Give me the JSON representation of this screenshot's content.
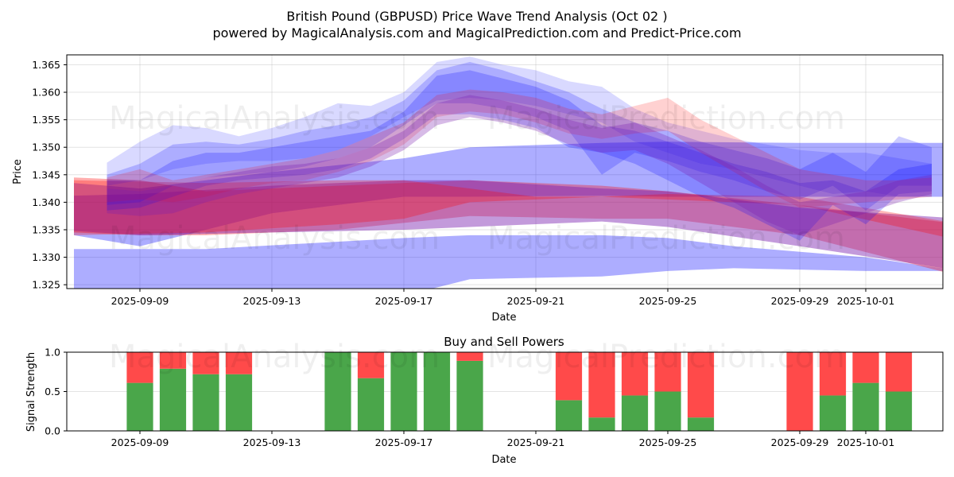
{
  "header": {
    "title": "British Pound (GBPUSD) Price Wave Trend Analysis (Oct 02 )",
    "subtitle": "powered by MagicalAnalysis.com and MagicalPrediction.com and Predict-Price.com"
  },
  "watermarks": [
    "MagicalAnalysis.com",
    "MagicalPrediction.com"
  ],
  "colors": {
    "blue_band": "#0000ff",
    "red_band": "#ff0000",
    "buy": "#4aa64a",
    "sell": "#ff4a4a"
  },
  "chart_data": [
    {
      "type": "area",
      "title": "",
      "xlabel": "Date",
      "ylabel": "Price",
      "ylim": [
        1.3243,
        1.3668
      ],
      "xlim": [
        "2025-09-06.8",
        "2025-10-03.3"
      ],
      "grid": true,
      "yticks": [
        "1.325",
        "1.330",
        "1.335",
        "1.340",
        "1.345",
        "1.350",
        "1.355",
        "1.360",
        "1.365"
      ],
      "ytick_values": [
        1.325,
        1.33,
        1.335,
        1.34,
        1.345,
        1.35,
        1.355,
        1.36,
        1.365
      ],
      "xticks": [
        "2025-09-09",
        "2025-09-13",
        "2025-09-17",
        "2025-09-21",
        "2025-09-25",
        "2025-09-29",
        "2025-10-01"
      ],
      "xtick_days": [
        2,
        6,
        10,
        14,
        18,
        22,
        24
      ],
      "x_origin": "2025-09-07",
      "bands": [
        {
          "name": "wide-blue-lower",
          "color": "blue",
          "opacity": 0.32,
          "x": [
            0,
            4,
            10,
            12,
            16,
            18,
            20,
            24,
            26.9
          ],
          "upper": [
            1.3315,
            1.3315,
            1.3335,
            1.334,
            1.334,
            1.3335,
            1.332,
            1.33,
            1.3275
          ],
          "lower": [
            1.32,
            1.322,
            1.323,
            1.326,
            1.3265,
            1.3275,
            1.328,
            1.3275,
            1.3275
          ]
        },
        {
          "name": "wide-blue-upper",
          "color": "blue",
          "opacity": 0.32,
          "x": [
            0,
            2,
            6,
            10,
            12,
            16,
            18,
            22,
            26.9
          ],
          "upper": [
            1.3435,
            1.3425,
            1.3455,
            1.348,
            1.35,
            1.3508,
            1.351,
            1.3508,
            1.3508
          ],
          "lower": [
            1.334,
            1.332,
            1.338,
            1.341,
            1.341,
            1.3412,
            1.341,
            1.341,
            1.341
          ]
        },
        {
          "name": "wide-red-lower",
          "color": "red",
          "opacity": 0.32,
          "x": [
            0,
            2,
            4,
            8,
            12,
            16,
            18,
            22,
            26.9
          ],
          "upper": [
            1.3445,
            1.344,
            1.342,
            1.343,
            1.344,
            1.343,
            1.342,
            1.3395,
            1.336
          ],
          "lower": [
            1.3345,
            1.334,
            1.334,
            1.335,
            1.3375,
            1.337,
            1.337,
            1.334,
            1.3265
          ]
        },
        {
          "name": "wide-purple",
          "color": "purple",
          "opacity": 0.45,
          "x": [
            0,
            2,
            6,
            10,
            12,
            16,
            18,
            22,
            26.9
          ],
          "upper": [
            1.3412,
            1.3415,
            1.343,
            1.344,
            1.344,
            1.3425,
            1.342,
            1.339,
            1.337
          ],
          "lower": [
            1.3348,
            1.334,
            1.3345,
            1.335,
            1.3355,
            1.3365,
            1.3355,
            1.332,
            1.3275
          ]
        },
        {
          "name": "mid-red",
          "color": "red",
          "opacity": 0.28,
          "x": [
            0,
            4,
            8,
            10,
            12,
            14,
            16,
            18,
            22,
            26.9
          ],
          "upper": [
            1.344,
            1.3435,
            1.344,
            1.344,
            1.3425,
            1.341,
            1.341,
            1.3415,
            1.341,
            1.336
          ],
          "lower": [
            1.334,
            1.3345,
            1.336,
            1.337,
            1.34,
            1.3405,
            1.341,
            1.3405,
            1.3395,
            1.333
          ]
        },
        {
          "name": "wave-blue-1",
          "color": "blue",
          "opacity": 0.15,
          "x": [
            1,
            2,
            3,
            4,
            5,
            6,
            7,
            8,
            9,
            10,
            11,
            12,
            13,
            14,
            15,
            16,
            17,
            18,
            19,
            20,
            21,
            22,
            23,
            24,
            25,
            26
          ],
          "upper": [
            1.3472,
            1.351,
            1.354,
            1.3535,
            1.352,
            1.3535,
            1.3555,
            1.358,
            1.3575,
            1.36,
            1.3655,
            1.3665,
            1.365,
            1.364,
            1.362,
            1.361,
            1.357,
            1.3545,
            1.353,
            1.3515,
            1.3505,
            1.3495,
            1.349,
            1.349,
            1.348,
            1.347
          ],
          "lower": [
            1.343,
            1.344,
            1.346,
            1.347,
            1.3475,
            1.3475,
            1.348,
            1.3495,
            1.352,
            1.3555,
            1.3585,
            1.359,
            1.3585,
            1.3575,
            1.356,
            1.3545,
            1.351,
            1.349,
            1.347,
            1.346,
            1.3445,
            1.343,
            1.3415,
            1.342,
            1.341,
            1.341
          ]
        },
        {
          "name": "wave-blue-2",
          "color": "blue",
          "opacity": 0.2,
          "x": [
            1,
            2,
            3,
            4,
            5,
            6,
            7,
            8,
            9,
            10,
            11,
            12,
            13,
            14,
            15,
            16,
            17,
            18,
            19,
            20,
            21,
            22,
            23,
            24,
            25,
            26
          ],
          "upper": [
            1.345,
            1.347,
            1.3505,
            1.351,
            1.3505,
            1.3515,
            1.353,
            1.354,
            1.3555,
            1.3585,
            1.364,
            1.3655,
            1.364,
            1.362,
            1.36,
            1.357,
            1.3545,
            1.353,
            1.351,
            1.3495,
            1.348,
            1.346,
            1.349,
            1.3455,
            1.352,
            1.35
          ],
          "lower": [
            1.3395,
            1.34,
            1.343,
            1.3445,
            1.345,
            1.3455,
            1.3465,
            1.348,
            1.35,
            1.354,
            1.358,
            1.358,
            1.357,
            1.3555,
            1.353,
            1.345,
            1.349,
            1.3475,
            1.3455,
            1.344,
            1.342,
            1.3405,
            1.343,
            1.3385,
            1.343,
            1.343
          ]
        },
        {
          "name": "wave-blue-3",
          "color": "blue",
          "opacity": 0.22,
          "x": [
            1,
            2,
            3,
            4,
            5,
            6,
            7,
            8,
            9,
            10,
            11,
            12,
            13,
            14,
            15,
            16,
            17,
            18,
            19,
            20,
            21,
            22,
            23,
            24,
            25,
            26
          ],
          "upper": [
            1.344,
            1.344,
            1.3475,
            1.349,
            1.349,
            1.35,
            1.351,
            1.352,
            1.353,
            1.3565,
            1.363,
            1.364,
            1.3625,
            1.361,
            1.3585,
            1.354,
            1.353,
            1.351,
            1.349,
            1.347,
            1.3455,
            1.3435,
            1.344,
            1.342,
            1.346,
            1.347
          ],
          "lower": [
            1.3385,
            1.339,
            1.341,
            1.343,
            1.344,
            1.3445,
            1.345,
            1.346,
            1.348,
            1.3515,
            1.356,
            1.356,
            1.355,
            1.3535,
            1.35,
            1.349,
            1.347,
            1.344,
            1.341,
            1.339,
            1.336,
            1.333,
            1.3395,
            1.336,
            1.3415,
            1.342
          ]
        },
        {
          "name": "wave-red-1",
          "color": "red",
          "opacity": 0.18,
          "x": [
            1,
            2,
            3,
            4,
            5,
            6,
            7,
            8,
            9,
            10,
            11,
            12,
            13,
            14,
            15,
            16,
            17,
            18,
            19,
            20,
            21,
            22,
            23,
            24,
            25,
            26
          ],
          "upper": [
            1.3445,
            1.346,
            1.344,
            1.345,
            1.346,
            1.347,
            1.348,
            1.3495,
            1.352,
            1.3545,
            1.3595,
            1.3605,
            1.36,
            1.359,
            1.357,
            1.356,
            1.3575,
            1.359,
            1.355,
            1.352,
            1.349,
            1.346,
            1.345,
            1.344,
            1.344,
            1.3445
          ],
          "lower": [
            1.34,
            1.3405,
            1.34,
            1.341,
            1.3425,
            1.3435,
            1.344,
            1.3455,
            1.3475,
            1.3505,
            1.3555,
            1.3565,
            1.356,
            1.3545,
            1.3525,
            1.3515,
            1.3525,
            1.353,
            1.349,
            1.3455,
            1.342,
            1.339,
            1.3395,
            1.34,
            1.3405,
            1.341
          ]
        },
        {
          "name": "wave-purple-1",
          "color": "purple",
          "opacity": 0.3,
          "x": [
            1,
            2,
            3,
            4,
            5,
            6,
            7,
            8,
            9,
            10,
            11,
            12,
            13,
            14,
            15,
            16,
            17,
            18,
            19,
            20,
            21,
            22,
            23,
            24,
            25,
            26
          ],
          "upper": [
            1.3425,
            1.342,
            1.343,
            1.3445,
            1.3455,
            1.3465,
            1.347,
            1.348,
            1.35,
            1.353,
            1.358,
            1.3595,
            1.3585,
            1.357,
            1.355,
            1.3535,
            1.3545,
            1.352,
            1.3495,
            1.3465,
            1.343,
            1.34,
            1.341,
            1.342,
            1.344,
            1.345
          ],
          "lower": [
            1.338,
            1.3375,
            1.338,
            1.34,
            1.3415,
            1.3425,
            1.3435,
            1.3445,
            1.3465,
            1.3495,
            1.354,
            1.3555,
            1.3545,
            1.353,
            1.3505,
            1.349,
            1.3495,
            1.347,
            1.3435,
            1.34,
            1.3365,
            1.334,
            1.336,
            1.338,
            1.34,
            1.3415
          ]
        }
      ]
    },
    {
      "type": "bar",
      "title": "Buy and Sell Powers",
      "xlabel": "Date",
      "ylabel": "Signal Strength",
      "ylim": [
        0,
        1.0
      ],
      "yticks": [
        "0.0",
        "0.5",
        "1.0"
      ],
      "ytick_values": [
        0,
        0.5,
        1.0
      ],
      "xticks": [
        "2025-09-09",
        "2025-09-13",
        "2025-09-17",
        "2025-09-21",
        "2025-09-25",
        "2025-09-29",
        "2025-10-01"
      ],
      "xtick_days": [
        2,
        6,
        10,
        14,
        18,
        22,
        24
      ],
      "categories": [
        "2025-09-09",
        "2025-09-10",
        "2025-09-11",
        "2025-09-12",
        "2025-09-15",
        "2025-09-16",
        "2025-09-17",
        "2025-09-18",
        "2025-09-19",
        "2025-09-22",
        "2025-09-23",
        "2025-09-24",
        "2025-09-25",
        "2025-09-26",
        "2025-09-29",
        "2025-09-30",
        "2025-10-01",
        "2025-10-02"
      ],
      "category_days": [
        2,
        3,
        4,
        5,
        8,
        9,
        10,
        11,
        12,
        15,
        16,
        17,
        18,
        19,
        22,
        23,
        24,
        25
      ],
      "series": [
        {
          "name": "Buy",
          "color": "green",
          "values": [
            0.61,
            0.79,
            0.72,
            0.72,
            1.0,
            0.67,
            1.0,
            1.0,
            0.89,
            0.39,
            0.17,
            0.45,
            0.5,
            0.17,
            0.0,
            0.45,
            0.61,
            0.5
          ]
        },
        {
          "name": "Sell",
          "color": "red",
          "values": [
            0.39,
            0.21,
            0.28,
            0.28,
            0.0,
            0.33,
            0.0,
            0.0,
            0.11,
            0.61,
            0.83,
            0.55,
            0.5,
            0.83,
            1.0,
            0.55,
            0.39,
            0.5
          ]
        }
      ]
    }
  ]
}
